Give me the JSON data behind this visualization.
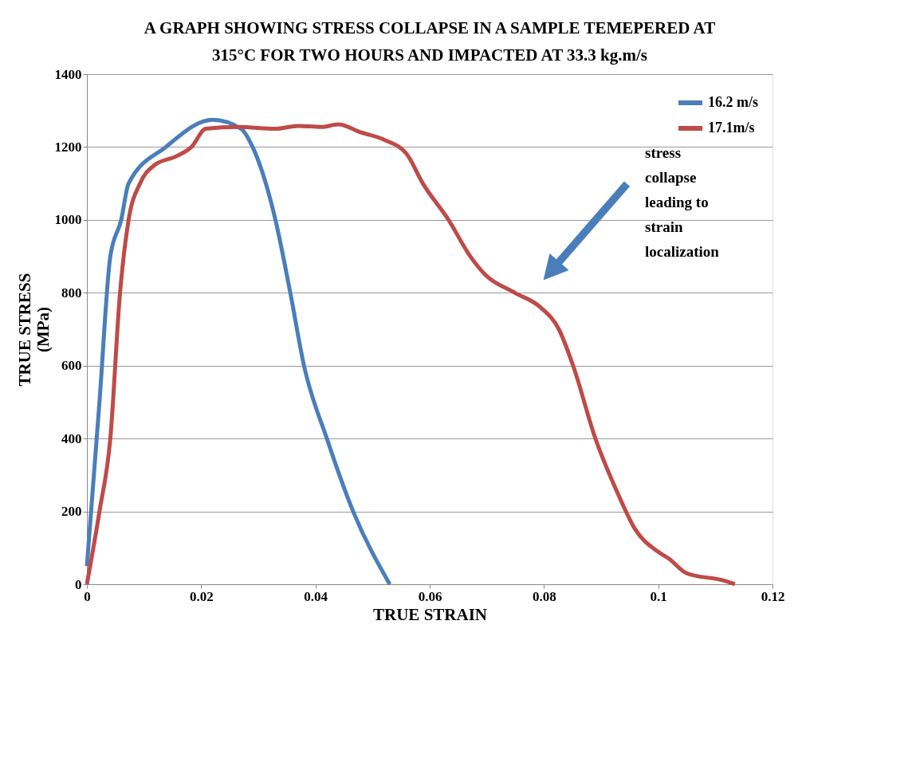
{
  "chart_data": {
    "type": "line",
    "title": "A GRAPH SHOWING STRESS COLLAPSE IN A SAMPLE TEMEPERED AT 315°C FOR TWO HOURS AND IMPACTED AT 33.3 kg.m/s",
    "xlabel": "TRUE STRAIN",
    "ylabel": "TRUE STRESS (MPa)",
    "xlim": [
      0,
      0.12
    ],
    "xticks": [
      0,
      0.02,
      0.04,
      0.06,
      0.08,
      0.1,
      0.12
    ],
    "ylim": [
      0,
      1400
    ],
    "yticks": [
      0,
      200,
      400,
      600,
      800,
      1000,
      1200,
      1400
    ],
    "grid": "y",
    "legend": "top right",
    "marker": "none",
    "line_style": "solid",
    "annotations": [
      "stress collapse leading to strain localization"
    ],
    "series": [
      {
        "name": "16.2 m/s",
        "color": "#4a7ebb",
        "x": [
          0,
          0.0022,
          0.0041,
          0.006,
          0.0073,
          0.0138,
          0.022,
          0.027,
          0.029,
          0.033,
          0.0356,
          0.038,
          0.042,
          0.0466,
          0.053
        ],
        "values": [
          50,
          500,
          900,
          1000,
          1100,
          1200,
          1275,
          1250,
          1200,
          1000,
          800,
          600,
          400,
          200,
          0
        ]
      },
      {
        "name": "17.1m/s",
        "color": "#be4b48",
        "x": [
          0,
          0.0022,
          0.0041,
          0.0058,
          0.0073,
          0.0093,
          0.0118,
          0.0157,
          0.0183,
          0.0208,
          0.0266,
          0.033,
          0.037,
          0.041,
          0.044,
          0.048,
          0.052,
          0.056,
          0.0588,
          0.0633,
          0.0671,
          0.0697,
          0.0749,
          0.0794,
          0.0826,
          0.0851,
          0.089,
          0.0929,
          0.096,
          0.0999,
          0.1019,
          0.105,
          0.1115,
          0.1134
        ],
        "values": [
          0,
          200,
          400,
          800,
          1000,
          1100,
          1150,
          1175,
          1200,
          1250,
          1255,
          1250,
          1258,
          1255,
          1262,
          1240,
          1220,
          1180,
          1100,
          1000,
          900,
          850,
          800,
          760,
          700,
          600,
          400,
          250,
          150,
          90,
          70,
          30,
          10,
          0
        ]
      }
    ]
  }
}
